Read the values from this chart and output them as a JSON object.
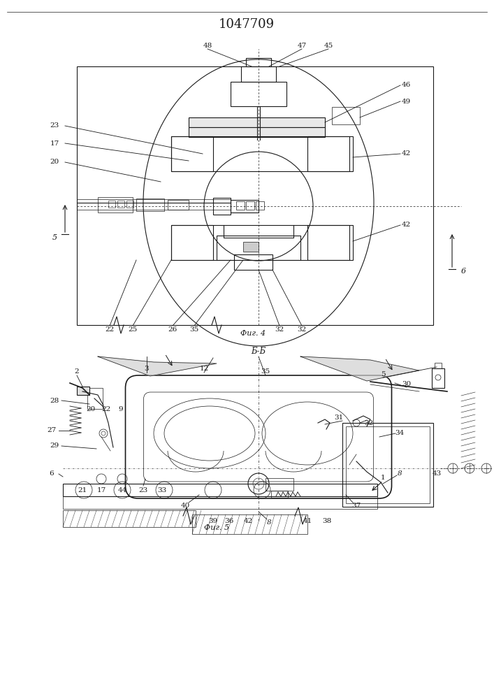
{
  "title": "1047709",
  "bg_color": "#ffffff",
  "fig_width": 7.07,
  "fig_height": 10.0,
  "dpi": 100,
  "fig4_caption": "Фиг. 4",
  "fig5_caption": "Фиг. 5",
  "bb_label": "Б-Б",
  "line_color": "#1a1a1a",
  "lw_main": 0.8,
  "lw_thin": 0.5,
  "lw_thick": 1.2,
  "label_fs": 7.5
}
